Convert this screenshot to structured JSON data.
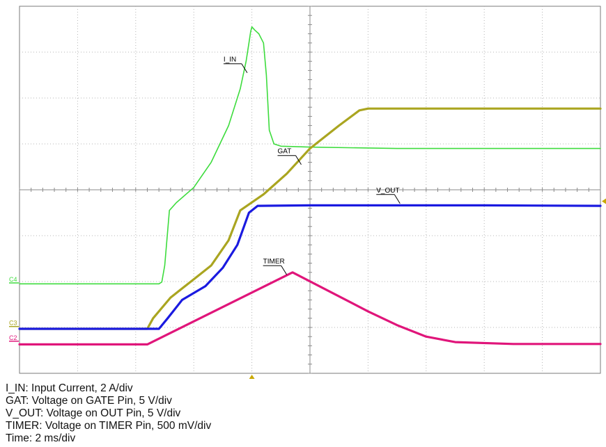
{
  "chart_data": {
    "type": "line",
    "grid": true,
    "x_divisions": 10,
    "y_divisions": 8,
    "x_range_div": [
      0,
      10
    ],
    "y_range_div": [
      0,
      8
    ],
    "series": [
      {
        "name": "I_IN",
        "channel": "C4",
        "color": "#3ddc3d",
        "ref_level_div": 1.97,
        "points": [
          [
            -0.2,
            1.95
          ],
          [
            2.4,
            1.95
          ],
          [
            2.45,
            1.99
          ],
          [
            2.5,
            2.35
          ],
          [
            2.58,
            3.55
          ],
          [
            2.7,
            3.72
          ],
          [
            3.0,
            4.05
          ],
          [
            3.3,
            4.6
          ],
          [
            3.6,
            5.4
          ],
          [
            3.8,
            6.2
          ],
          [
            3.9,
            6.8
          ],
          [
            3.95,
            7.2
          ],
          [
            3.98,
            7.45
          ],
          [
            4.0,
            7.55
          ],
          [
            4.05,
            7.48
          ],
          [
            4.12,
            7.4
          ],
          [
            4.2,
            7.2
          ],
          [
            4.25,
            6.5
          ],
          [
            4.3,
            5.3
          ],
          [
            4.38,
            5.0
          ],
          [
            4.5,
            4.95
          ],
          [
            5.0,
            4.93
          ],
          [
            6.5,
            4.9
          ],
          [
            8.0,
            4.9
          ],
          [
            10.2,
            4.9
          ]
        ]
      },
      {
        "name": "GAT",
        "channel": "C3",
        "color": "#aaa520",
        "ref_level_div": 1.02,
        "points": [
          [
            -0.2,
            0.97
          ],
          [
            2.2,
            0.97
          ],
          [
            2.3,
            1.2
          ],
          [
            2.6,
            1.65
          ],
          [
            3.0,
            2.05
          ],
          [
            3.3,
            2.35
          ],
          [
            3.6,
            2.9
          ],
          [
            3.8,
            3.55
          ],
          [
            4.2,
            3.9
          ],
          [
            4.6,
            4.35
          ],
          [
            5.0,
            4.9
          ],
          [
            5.5,
            5.4
          ],
          [
            5.85,
            5.73
          ],
          [
            6.0,
            5.77
          ],
          [
            7.0,
            5.77
          ],
          [
            8.0,
            5.77
          ],
          [
            10.2,
            5.77
          ]
        ]
      },
      {
        "name": "V_OUT",
        "channel": null,
        "color": "#1a1ae0",
        "ref_level_div": null,
        "points": [
          [
            -0.2,
            0.97
          ],
          [
            2.4,
            0.97
          ],
          [
            2.55,
            1.2
          ],
          [
            2.8,
            1.6
          ],
          [
            3.2,
            1.9
          ],
          [
            3.5,
            2.3
          ],
          [
            3.75,
            2.8
          ],
          [
            3.95,
            3.5
          ],
          [
            4.1,
            3.65
          ],
          [
            5.0,
            3.66
          ],
          [
            6.0,
            3.66
          ],
          [
            8.0,
            3.66
          ],
          [
            10.2,
            3.65
          ]
        ]
      },
      {
        "name": "TIMER",
        "channel": "C2",
        "color": "#e0157a",
        "ref_level_div": 0.7,
        "points": [
          [
            -0.2,
            0.63
          ],
          [
            2.2,
            0.63
          ],
          [
            4.7,
            2.2
          ],
          [
            6.0,
            1.35
          ],
          [
            6.5,
            1.05
          ],
          [
            7.0,
            0.8
          ],
          [
            7.5,
            0.68
          ],
          [
            8.5,
            0.64
          ],
          [
            10.2,
            0.64
          ]
        ]
      }
    ],
    "annotations": [
      {
        "text": "I_IN",
        "series": "I_IN",
        "at": [
          3.92,
          6.55
        ]
      },
      {
        "text": "GAT",
        "series": "GAT",
        "at": [
          4.85,
          4.55
        ]
      },
      {
        "text": "V_OUT",
        "series": "V_OUT",
        "at": [
          6.55,
          3.7
        ]
      },
      {
        "text": "TIMER",
        "series": "TIMER",
        "at": [
          4.6,
          2.15
        ]
      }
    ],
    "trigger_marker_x_div": 4.0,
    "right_marker_y_div": 3.75
  },
  "caption_lines": [
    "I_IN: Input Current, 2 A/div",
    "GAT: Voltage on GATE Pin, 5 V/div",
    "V_OUT: Voltage on OUT Pin, 5 V/div",
    "TIMER: Voltage on TIMER Pin, 500 mV/div",
    "Time: 2 ms/div"
  ]
}
